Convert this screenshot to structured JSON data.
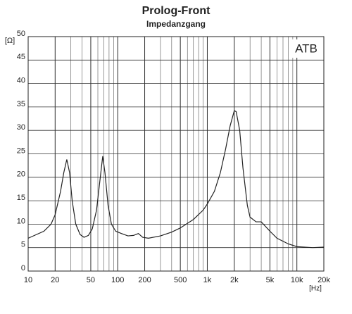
{
  "chart_data": {
    "type": "line",
    "title": "Prolog-Front",
    "subtitle": "Impedanzgang",
    "xlabel": "[Hz]",
    "ylabel": "[Ω]",
    "annotation": "ATB",
    "xscale": "log",
    "grid": true,
    "minor_grid": true,
    "xlim": [
      10,
      20000
    ],
    "ylim": [
      0,
      50
    ],
    "xticks": [
      10,
      20,
      50,
      100,
      200,
      500,
      {
        "value": 1000,
        "label": "1k"
      },
      {
        "value": 2000,
        "label": "2k"
      },
      {
        "value": 5000,
        "label": "5k"
      },
      {
        "value": 10000,
        "label": "10k"
      },
      {
        "value": 20000,
        "label": "20k"
      }
    ],
    "yticks": [
      0,
      5,
      10,
      15,
      20,
      25,
      30,
      35,
      40,
      45,
      50
    ],
    "x": [
      10,
      15,
      18,
      20,
      23,
      25,
      27,
      29,
      31,
      34,
      38,
      42,
      47,
      52,
      58,
      63,
      68,
      72,
      78,
      85,
      95,
      110,
      130,
      150,
      170,
      190,
      220,
      300,
      400,
      500,
      700,
      900,
      1000,
      1200,
      1400,
      1600,
      1800,
      2000,
      2100,
      2300,
      2500,
      2800,
      3000,
      3500,
      4000,
      5000,
      6000,
      8000,
      10000,
      15000,
      20000
    ],
    "series": [
      {
        "color": "#222222",
        "values": [
          7,
          8.5,
          10,
          12,
          17,
          21,
          23.8,
          21,
          15,
          10,
          7.8,
          7.2,
          7.6,
          9,
          13,
          19,
          24.5,
          21,
          14,
          10,
          8.5,
          8,
          7.5,
          7.6,
          8,
          7.2,
          7.0,
          7.5,
          8.3,
          9.2,
          11,
          13,
          14.3,
          17,
          21,
          26,
          31,
          34.2,
          34,
          30,
          22,
          14,
          11.5,
          10.5,
          10.5,
          8.5,
          7,
          5.8,
          5.2,
          5,
          5.1
        ]
      }
    ]
  }
}
